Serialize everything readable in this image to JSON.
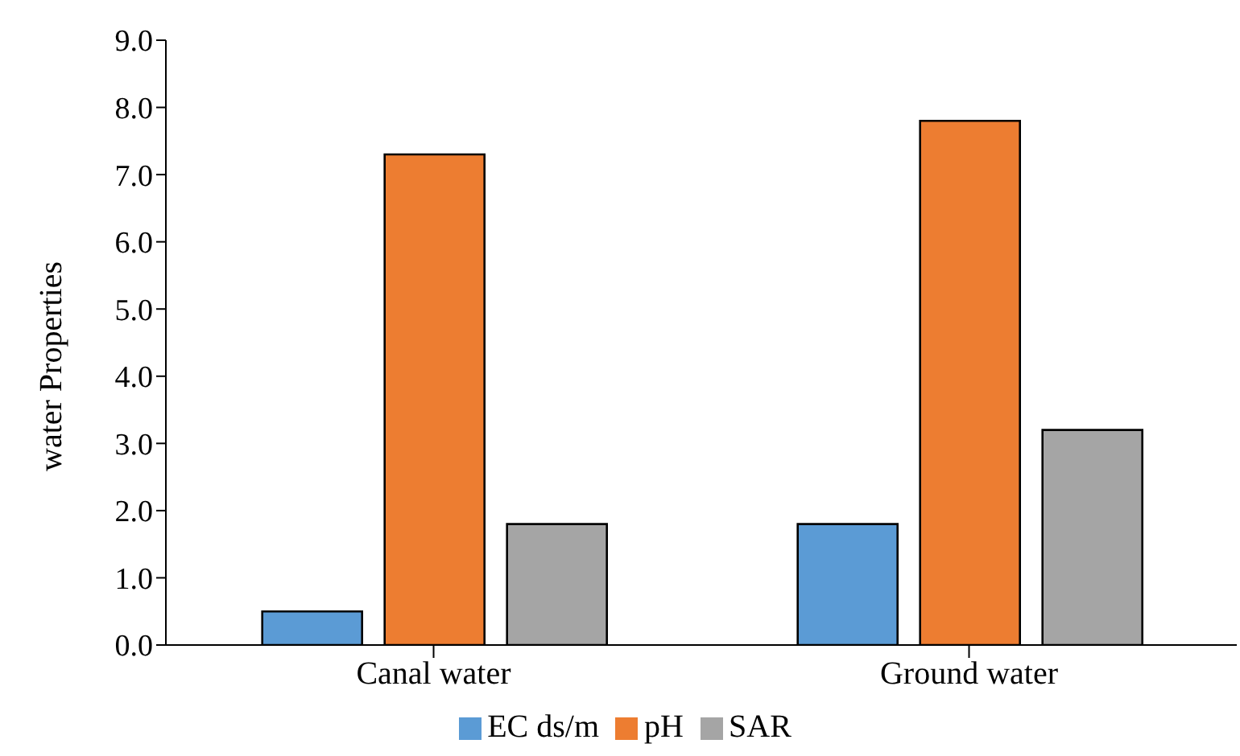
{
  "chart_data": {
    "type": "bar",
    "ylabel": "water  Properties",
    "categories": [
      "Canal water",
      "Ground water"
    ],
    "series": [
      {
        "name": "EC ds/m",
        "color": "#5b9bd5",
        "values": [
          0.5,
          1.8
        ]
      },
      {
        "name": "pH",
        "color": "#ed7d31",
        "values": [
          7.3,
          7.8
        ]
      },
      {
        "name": "SAR",
        "color": "#a5a5a5",
        "values": [
          1.8,
          3.2
        ]
      }
    ],
    "ylim": [
      0,
      9
    ],
    "yticks": [
      {
        "value": 0,
        "label": "0.0"
      },
      {
        "value": 1,
        "label": "1.0"
      },
      {
        "value": 2,
        "label": "2.0"
      },
      {
        "value": 3,
        "label": "3.0"
      },
      {
        "value": 4,
        "label": "4.0"
      },
      {
        "value": 5,
        "label": "5.0"
      },
      {
        "value": 6,
        "label": "6.0"
      },
      {
        "value": 7,
        "label": "7.0"
      },
      {
        "value": 8,
        "label": "8.0"
      },
      {
        "value": 9,
        "label": "9.0"
      }
    ],
    "grid": false,
    "legend": "bottom"
  }
}
